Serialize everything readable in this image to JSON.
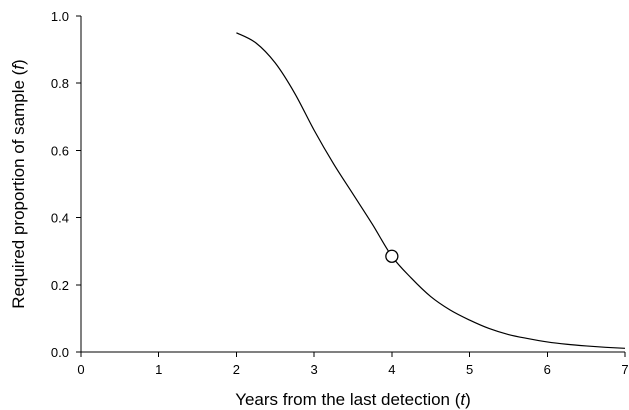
{
  "chart_data": {
    "type": "line",
    "xlabel": {
      "text": "Years from the last detection (",
      "var": "t",
      "close": ")"
    },
    "ylabel": {
      "text": "Required proportion of sample (",
      "var": "f",
      "close": ")"
    },
    "xlim": [
      0,
      7
    ],
    "ylim": [
      0,
      1.0
    ],
    "x_ticks": [
      0,
      1,
      2,
      3,
      4,
      5,
      6,
      7
    ],
    "y_ticks": [
      0.0,
      0.2,
      0.4,
      0.6,
      0.8,
      1.0
    ],
    "x_tick_labels": [
      "0",
      "1",
      "2",
      "3",
      "4",
      "5",
      "6",
      "7"
    ],
    "y_tick_labels": [
      "0.0",
      "0.2",
      "0.4",
      "0.6",
      "0.8",
      "1.0"
    ],
    "grid": false,
    "series": [
      {
        "x": [
          2.0,
          2.25,
          2.5,
          2.75,
          3.0,
          3.25,
          3.5,
          3.75,
          4.0,
          4.25,
          4.5,
          4.75,
          5.0,
          5.25,
          5.5,
          5.75,
          6.0,
          6.25,
          6.5,
          6.75,
          7.0
        ],
        "y": [
          0.95,
          0.92,
          0.86,
          0.77,
          0.66,
          0.56,
          0.47,
          0.38,
          0.285,
          0.22,
          0.165,
          0.125,
          0.095,
          0.07,
          0.052,
          0.04,
          0.03,
          0.023,
          0.018,
          0.014,
          0.011
        ]
      }
    ],
    "markers": [
      {
        "x": 4.0,
        "y": 0.285,
        "style": "open-circle"
      }
    ]
  }
}
